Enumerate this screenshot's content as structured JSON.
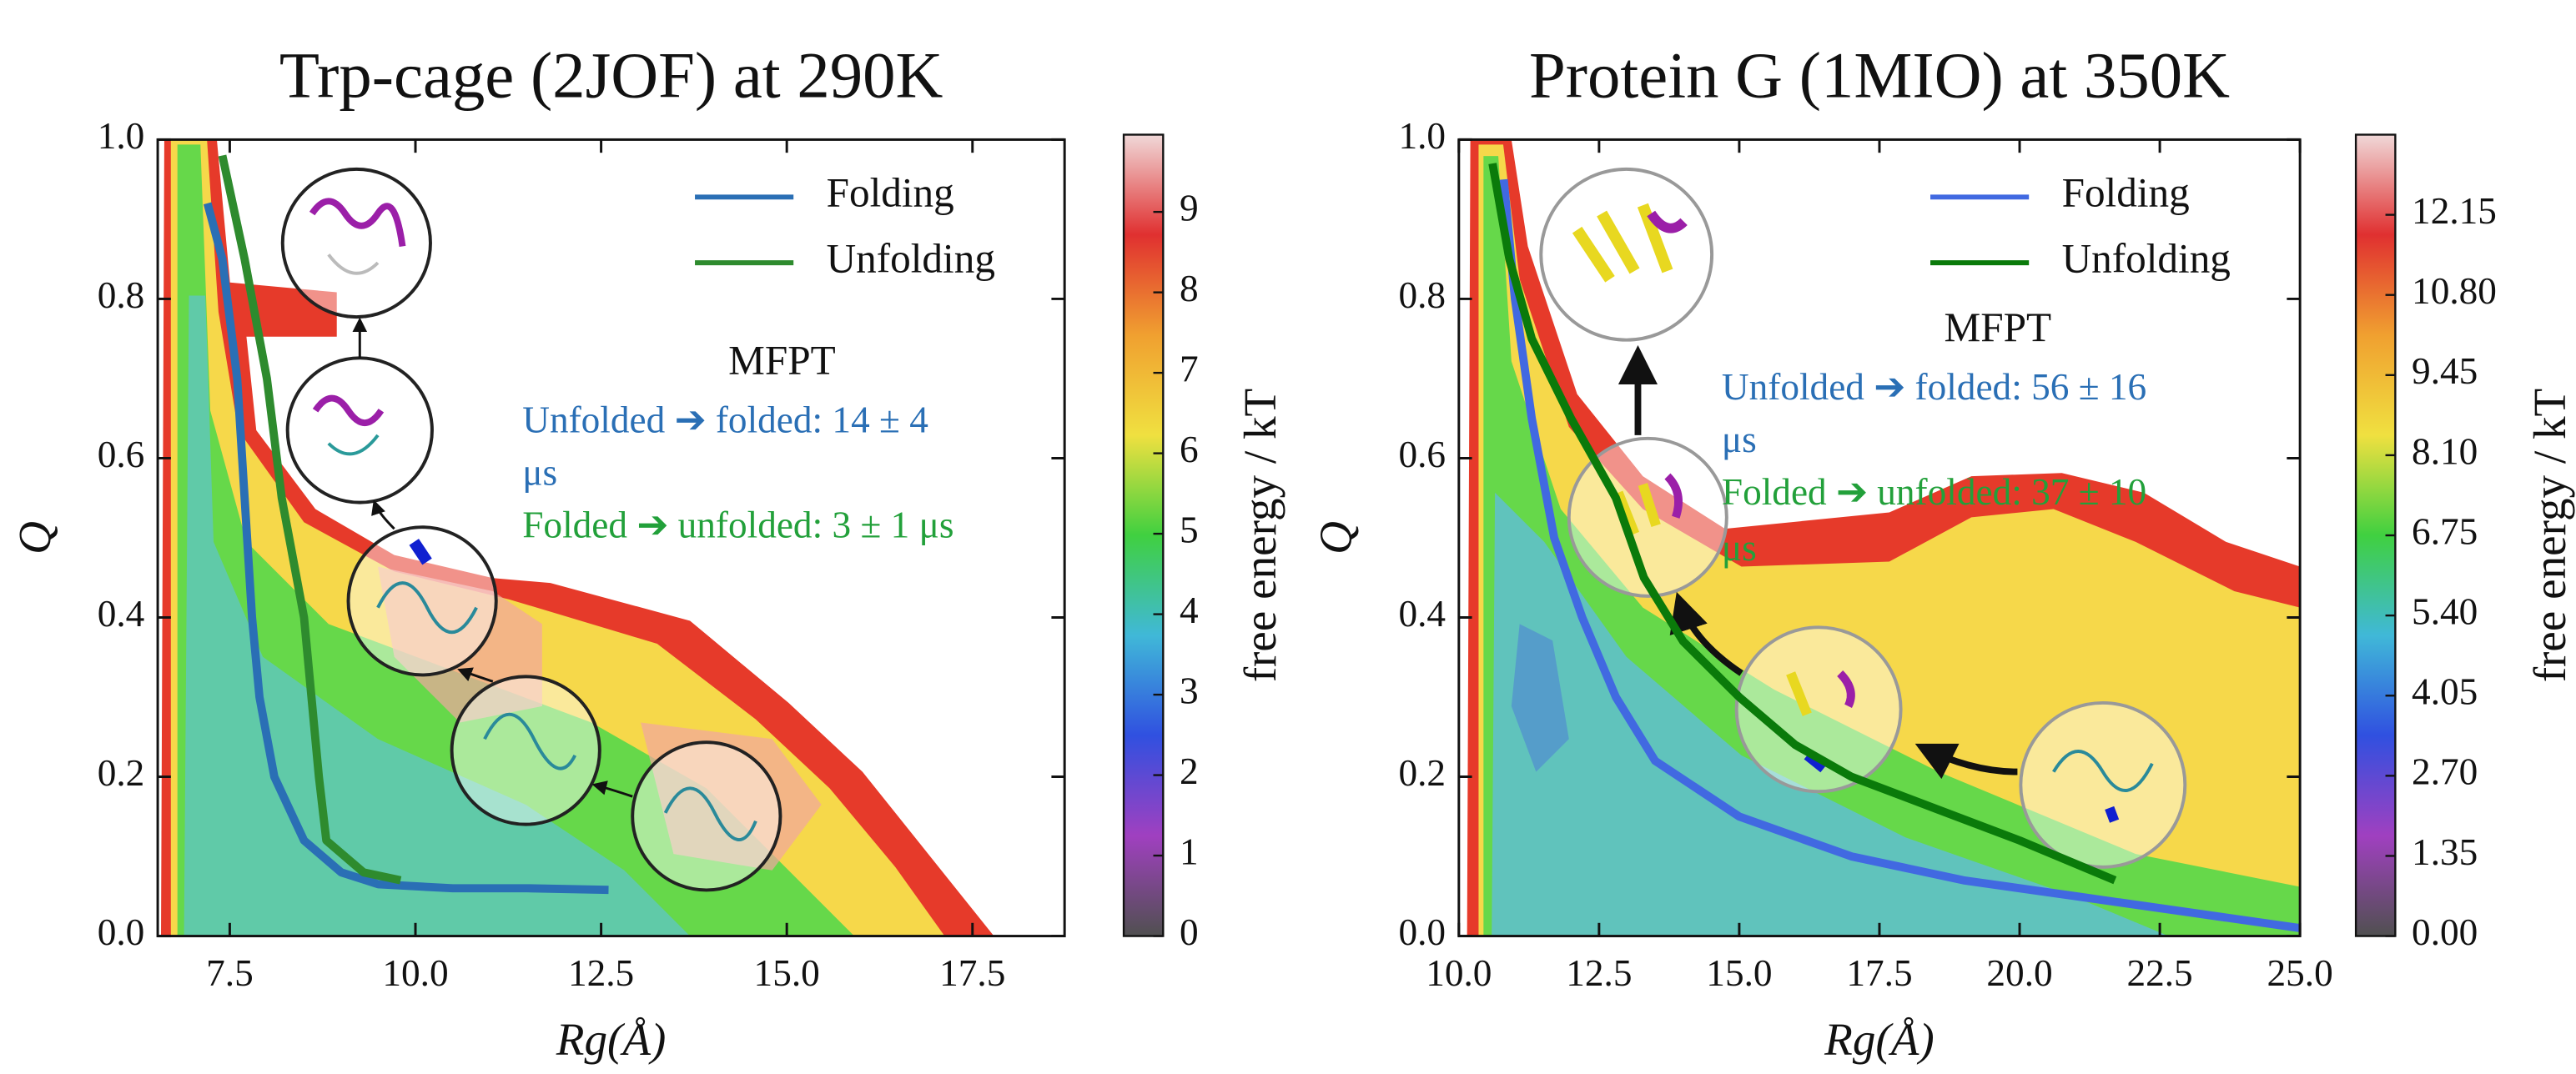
{
  "chart_data": [
    {
      "type": "line",
      "title": "Trp-cage (2JOF) at 290K",
      "x_label": "Rg(Å)",
      "y_label": "Q",
      "xlim": [
        6.53,
        18.74
      ],
      "ylim": [
        0,
        1
      ],
      "xticks": [
        7.5,
        {
          "value": 10,
          "label": "10.0"
        },
        12.5,
        {
          "value": 15,
          "label": "15.0"
        },
        17.5
      ],
      "yticks": [
        {
          "value": 0,
          "label": "0.0"
        },
        0.2,
        0.4,
        0.6,
        0.8,
        {
          "value": 1,
          "label": "1.0"
        }
      ],
      "legend": "upper right",
      "series": [
        {
          "name": "Folding",
          "color": "#2a6fb5",
          "x": [
            7.2,
            7.4,
            7.6,
            7.7,
            7.8,
            7.9,
            8.1,
            8.5,
            9.0,
            9.5,
            10.5,
            11.5,
            12.6
          ],
          "values": [
            0.92,
            0.85,
            0.7,
            0.55,
            0.4,
            0.3,
            0.2,
            0.12,
            0.08,
            0.065,
            0.06,
            0.06,
            0.058
          ]
        },
        {
          "name": "Unfolding",
          "color": "#2e8b2e",
          "x": [
            7.4,
            7.7,
            8.0,
            8.2,
            8.5,
            8.6,
            8.7,
            8.8,
            9.3,
            9.8
          ],
          "values": [
            0.98,
            0.85,
            0.7,
            0.55,
            0.4,
            0.3,
            0.2,
            0.12,
            0.08,
            0.07
          ]
        }
      ],
      "annotations": [
        {
          "text": "MFPT",
          "color": "#111111"
        },
        {
          "text": "Unfolded ➔ folded: 14 ± 4",
          "color": "#2a6fb5"
        },
        {
          "text": "μs",
          "color": "#2a6fb5"
        },
        {
          "text": "Folded ➔ unfolded: 3 ± 1 μs",
          "color": "#22a03a"
        }
      ],
      "colorbar": {
        "label": "free energy / kT",
        "lim": [
          0,
          9.96
        ],
        "ticks": [
          0,
          1,
          2,
          3,
          4,
          5,
          6,
          7,
          8,
          9
        ],
        "colors": [
          "#505050",
          "#a040c0",
          "#3050e0",
          "#40b8d8",
          "#40d040",
          "#f0e040",
          "#f0a030",
          "#e03030",
          "#f0d8d8"
        ]
      }
    },
    {
      "type": "line",
      "title": "Protein G (1MIO) at 350K",
      "x_label": "Rg(Å)",
      "y_label": "Q",
      "xlim": [
        10,
        25
      ],
      "ylim": [
        0,
        1
      ],
      "xticks": [
        {
          "value": 10,
          "label": "10.0"
        },
        12.5,
        {
          "value": 15,
          "label": "15.0"
        },
        17.5,
        {
          "value": 20,
          "label": "20.0"
        },
        22.5,
        {
          "value": 25,
          "label": "25.0"
        }
      ],
      "yticks": [
        {
          "value": 0,
          "label": "0.0"
        },
        0.2,
        0.4,
        0.6,
        0.8,
        {
          "value": 1,
          "label": "1.0"
        }
      ],
      "legend": "upper right",
      "series": [
        {
          "name": "Folding",
          "color": "#4169e1",
          "x": [
            10.8,
            11.0,
            11.3,
            11.7,
            12.2,
            12.8,
            13.5,
            15,
            17,
            19,
            21,
            23,
            25
          ],
          "values": [
            0.95,
            0.8,
            0.65,
            0.5,
            0.4,
            0.3,
            0.22,
            0.15,
            0.1,
            0.07,
            0.05,
            0.03,
            0.01
          ]
        },
        {
          "name": "Unfolding",
          "color": "#0a7a0a",
          "x": [
            10.6,
            10.9,
            11.3,
            12,
            12.8,
            13.3,
            14,
            15,
            16,
            17,
            18.5,
            20,
            21.7
          ],
          "values": [
            0.97,
            0.85,
            0.75,
            0.65,
            0.55,
            0.45,
            0.37,
            0.3,
            0.24,
            0.2,
            0.16,
            0.12,
            0.07
          ]
        }
      ],
      "annotations": [
        {
          "text": "MFPT",
          "color": "#111111"
        },
        {
          "text": "Unfolded ➔ folded: 56 ± 16",
          "color": "#2a6fb5"
        },
        {
          "text": "μs",
          "color": "#2a6fb5"
        },
        {
          "text": "Folded ➔ unfolded: 37 ± 10",
          "color": "#22a03a"
        },
        {
          "text": "μs",
          "color": "#22a03a"
        }
      ],
      "colorbar": {
        "label": "free energy / kT",
        "lim": [
          0,
          13.5
        ],
        "ticks": [
          {
            "value": 0,
            "label": "0.00"
          },
          1.35,
          {
            "value": 2.7,
            "label": "2.70"
          },
          4.05,
          {
            "value": 5.4,
            "label": "5.40"
          },
          6.75,
          {
            "value": 8.1,
            "label": "8.10"
          },
          9.45,
          {
            "value": 10.8,
            "label": "10.80"
          },
          12.15
        ],
        "colors": [
          "#505050",
          "#a040c0",
          "#3050e0",
          "#40b8d8",
          "#40d040",
          "#f0e040",
          "#f0a030",
          "#e03030",
          "#f0d8d8"
        ]
      }
    }
  ]
}
